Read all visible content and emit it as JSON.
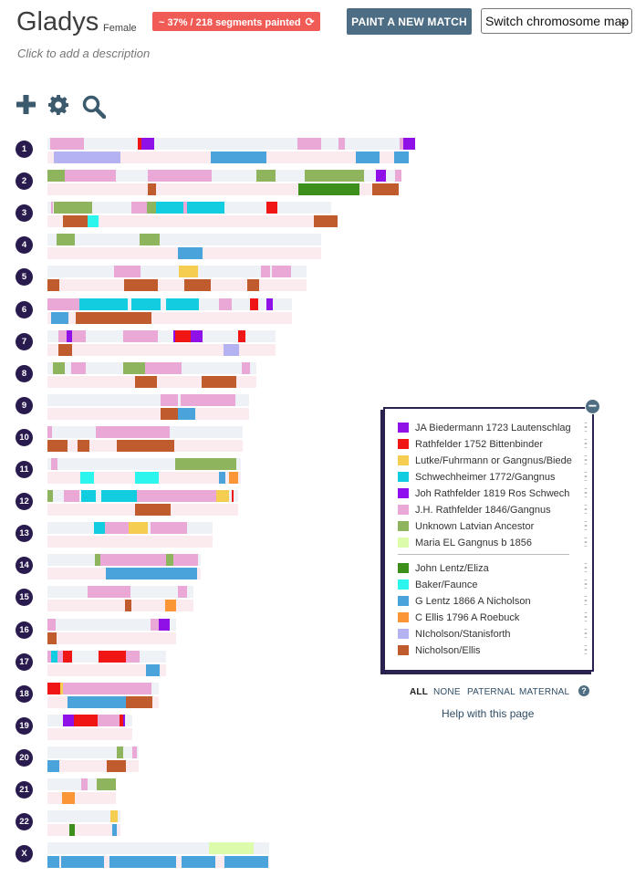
{
  "profile": {
    "name": "Gladys",
    "sex": "Female",
    "stats": "~ 37% / 218 segments painted",
    "description_placeholder": "Click to add a description"
  },
  "toolbar": {
    "paint_button": "PAINT A NEW MATCH",
    "map_select": "Switch chromosome map",
    "tools": [
      "plus-icon",
      "gear-icon",
      "search-icon"
    ]
  },
  "colors": {
    "JAB": "#9010e8",
    "RAT": "#f01616",
    "LUT": "#f5cd50",
    "SCH": "#12cde0",
    "JOH": "#8e0ef0",
    "JHR": "#eaa8d6",
    "UNK": "#8eb55d",
    "MAR": "#dcfbab",
    "LEN": "#3c8f1b",
    "BAK": "#2cf5ee",
    "GLE": "#4ba3dc",
    "CEL": "#fb9636",
    "NIS": "#b4b2f0",
    "NEL": "#bf5b2c"
  },
  "legend": {
    "items": [
      {
        "key": "JAB",
        "label": "JA Biedermann 1723 Lautenschlag"
      },
      {
        "key": "RAT",
        "label": "Rathfelder 1752 Bittenbinder"
      },
      {
        "key": "LUT",
        "label": "Lutke/Fuhrmann or Gangnus/Biede"
      },
      {
        "key": "SCH",
        "label": "Schwechheimer 1772/Gangnus"
      },
      {
        "key": "JOH",
        "label": "Joh Rathfelder 1819 Ros Schwech"
      },
      {
        "key": "JHR",
        "label": "J.H. Rathfelder 1846/Gangnus"
      },
      {
        "key": "UNK",
        "label": "Unknown Latvian Ancestor"
      },
      {
        "key": "MAR",
        "label": "Maria EL Gangnus b 1856"
      },
      {
        "key": "LEN",
        "label": "John Lentz/Eliza"
      },
      {
        "key": "BAK",
        "label": "Baker/Faunce"
      },
      {
        "key": "GLE",
        "label": "G Lentz 1866 A Nicholson"
      },
      {
        "key": "CEL",
        "label": "C Ellis 1796 A Roebuck"
      },
      {
        "key": "NIS",
        "label": "NIcholson/Stanisforth"
      },
      {
        "key": "NEL",
        "label": "Nicholson/Ellis"
      }
    ]
  },
  "filters": {
    "all": "ALL",
    "none": "NONE",
    "paternal": "PATERNAL",
    "maternal": "MATERNAL"
  },
  "help": {
    "icon": "help-icon",
    "link": "Help with this page"
  },
  "chromosomes": [
    {
      "label": "1",
      "length_mb": 249,
      "paternal": [
        [
          3,
          40,
          "JHR"
        ],
        [
          99,
          103,
          "RAT"
        ],
        [
          103,
          117,
          "JAB"
        ],
        [
          274,
          300,
          "JHR"
        ],
        [
          319,
          326,
          "JHR"
        ],
        [
          386,
          390,
          "JHR"
        ],
        [
          390,
          403,
          "JAB"
        ]
      ],
      "maternal": [
        [
          7,
          80,
          "NIS"
        ],
        [
          179,
          240,
          "GLE"
        ],
        [
          338,
          364,
          "GLE"
        ],
        [
          380,
          396,
          "GLE"
        ]
      ]
    },
    {
      "label": "2",
      "length_mb": 243,
      "paternal": [
        [
          0,
          19,
          "UNK"
        ],
        [
          19,
          75,
          "JHR"
        ],
        [
          110,
          180,
          "JHR"
        ],
        [
          229,
          250,
          "UNK"
        ],
        [
          282,
          337,
          "UNK"
        ],
        [
          337,
          347,
          "UNK"
        ],
        [
          360,
          371,
          "JAB"
        ],
        [
          381,
          388,
          "JHR"
        ]
      ],
      "maternal": [
        [
          110,
          119,
          "NEL"
        ],
        [
          275,
          342,
          "LEN"
        ],
        [
          356,
          385,
          "NEL"
        ]
      ]
    },
    {
      "label": "3",
      "length_mb": 198,
      "paternal": [
        [
          4,
          6,
          "JHR"
        ],
        [
          7,
          49,
          "UNK"
        ],
        [
          92,
          109,
          "JHR"
        ],
        [
          109,
          113,
          "UNK"
        ],
        [
          113,
          119,
          "UNK"
        ],
        [
          119,
          149,
          "SCH"
        ],
        [
          149,
          153,
          "JHR"
        ],
        [
          153,
          194,
          "SCH"
        ],
        [
          240,
          252,
          "RAT"
        ]
      ],
      "maternal": [
        [
          17,
          44,
          "NEL"
        ],
        [
          44,
          56,
          "BAK"
        ],
        [
          292,
          318,
          "NEL"
        ]
      ]
    },
    {
      "label": "4",
      "length_mb": 191,
      "paternal": [
        [
          10,
          30,
          "UNK"
        ],
        [
          101,
          123,
          "UNK"
        ]
      ],
      "maternal": [
        [
          143,
          170,
          "GLE"
        ]
      ]
    },
    {
      "label": "5",
      "length_mb": 181,
      "paternal": [
        [
          73,
          102,
          "JHR"
        ],
        [
          144,
          165,
          "LUT"
        ],
        [
          234,
          244,
          "JHR"
        ],
        [
          246,
          267,
          "JHR"
        ]
      ],
      "maternal": [
        [
          0,
          13,
          "NEL"
        ],
        [
          84,
          121,
          "NEL"
        ],
        [
          150,
          179,
          "NEL"
        ],
        [
          219,
          232,
          "NEL"
        ]
      ]
    },
    {
      "label": "6",
      "length_mb": 171,
      "paternal": [
        [
          0,
          35,
          "JHR"
        ],
        [
          35,
          88,
          "SCH"
        ],
        [
          92,
          124,
          "SCH"
        ],
        [
          130,
          166,
          "SCH"
        ],
        [
          188,
          202,
          "JHR"
        ],
        [
          222,
          231,
          "RAT"
        ],
        [
          240,
          247,
          "JAB"
        ]
      ],
      "maternal": [
        [
          4,
          23,
          "GLE"
        ],
        [
          31,
          66,
          "NEL"
        ],
        [
          66,
          114,
          "NEL"
        ]
      ]
    },
    {
      "label": "7",
      "length_mb": 159,
      "paternal": [
        [
          12,
          21,
          "JHR"
        ],
        [
          21,
          27,
          "JAB"
        ],
        [
          27,
          42,
          "JHR"
        ],
        [
          83,
          121,
          "JHR"
        ],
        [
          138,
          140,
          "JOH"
        ],
        [
          140,
          157,
          "RAT"
        ],
        [
          157,
          170,
          "JAB"
        ],
        [
          209,
          217,
          "RAT"
        ]
      ],
      "maternal": [
        [
          12,
          27,
          "NEL"
        ],
        [
          193,
          210,
          "NIS"
        ]
      ]
    },
    {
      "label": "8",
      "length_mb": 146,
      "paternal": [
        [
          6,
          19,
          "UNK"
        ],
        [
          26,
          42,
          "JHR"
        ],
        [
          83,
          107,
          "UNK"
        ],
        [
          107,
          147,
          "JHR"
        ],
        [
          213,
          222,
          "JHR"
        ]
      ],
      "maternal": [
        [
          96,
          120,
          "NEL"
        ],
        [
          169,
          193,
          "NEL"
        ],
        [
          193,
          207,
          "NEL"
        ]
      ]
    },
    {
      "label": "9",
      "length_mb": 141,
      "paternal": [
        [
          124,
          143,
          "JHR"
        ],
        [
          146,
          175,
          "JHR"
        ],
        [
          175,
          206,
          "JHR"
        ]
      ],
      "maternal": [
        [
          124,
          143,
          "NEL"
        ],
        [
          143,
          162,
          "GLE"
        ]
      ]
    },
    {
      "label": "10",
      "length_mb": 136,
      "paternal": [
        [
          0,
          5,
          "JHR"
        ],
        [
          53,
          134,
          "JHR"
        ]
      ],
      "maternal": [
        [
          0,
          22,
          "NEL"
        ],
        [
          33,
          46,
          "NEL"
        ],
        [
          76,
          139,
          "NEL"
        ]
      ]
    },
    {
      "label": "11",
      "length_mb": 135,
      "paternal": [
        [
          4,
          11,
          "JHR"
        ],
        [
          140,
          150,
          "UNK"
        ],
        [
          150,
          207,
          "UNK"
        ]
      ],
      "maternal": [
        [
          36,
          51,
          "BAK"
        ],
        [
          96,
          122,
          "BAK"
        ],
        [
          188,
          195,
          "GLE"
        ],
        [
          199,
          209,
          "CEL"
        ]
      ]
    },
    {
      "label": "12",
      "length_mb": 133,
      "paternal": [
        [
          0,
          6,
          "UNK"
        ],
        [
          18,
          35,
          "JHR"
        ],
        [
          37,
          53,
          "SCH"
        ],
        [
          59,
          98,
          "SCH"
        ],
        [
          98,
          185,
          "JHR"
        ],
        [
          185,
          199,
          "LUT"
        ],
        [
          202,
          204,
          "RAT"
        ]
      ],
      "maternal": [
        [
          96,
          135,
          "NEL"
        ]
      ]
    },
    {
      "label": "13",
      "length_mb": 115,
      "paternal": [
        [
          51,
          63,
          "SCH"
        ],
        [
          63,
          89,
          "JHR"
        ],
        [
          89,
          110,
          "LUT"
        ],
        [
          113,
          153,
          "JHR"
        ]
      ],
      "maternal": []
    },
    {
      "label": "14",
      "length_mb": 107,
      "paternal": [
        [
          52,
          58,
          "UNK"
        ],
        [
          58,
          130,
          "JHR"
        ],
        [
          130,
          138,
          "UNK"
        ],
        [
          138,
          165,
          "JHR"
        ]
      ],
      "maternal": [
        [
          64,
          164,
          "GLE"
        ]
      ]
    },
    {
      "label": "15",
      "length_mb": 102,
      "paternal": [
        [
          44,
          91,
          "JHR"
        ],
        [
          143,
          153,
          "JHR"
        ]
      ],
      "maternal": [
        [
          85,
          92,
          "NEL"
        ],
        [
          129,
          141,
          "CEL"
        ]
      ]
    },
    {
      "label": "16",
      "length_mb": 90,
      "paternal": [
        [
          0,
          9,
          "JHR"
        ],
        [
          113,
          122,
          "JHR"
        ],
        [
          122,
          134,
          "JAB"
        ]
      ],
      "maternal": [
        [
          0,
          10,
          "NEL"
        ]
      ]
    },
    {
      "label": "17",
      "length_mb": 83,
      "paternal": [
        [
          0,
          4,
          "JHR"
        ],
        [
          4,
          11,
          "SCH"
        ],
        [
          11,
          17,
          "JHR"
        ],
        [
          17,
          27,
          "RAT"
        ],
        [
          56,
          68,
          "RAT"
        ],
        [
          68,
          86,
          "RAT"
        ],
        [
          86,
          101,
          "JHR"
        ]
      ],
      "maternal": [
        [
          108,
          123,
          "GLE"
        ]
      ]
    },
    {
      "label": "18",
      "length_mb": 78,
      "paternal": [
        [
          0,
          14,
          "RAT"
        ],
        [
          14,
          17,
          "LUT"
        ],
        [
          17,
          114,
          "JHR"
        ]
      ],
      "maternal": [
        [
          22,
          58,
          "GLE"
        ],
        [
          58,
          86,
          "GLE"
        ],
        [
          86,
          115,
          "NEL"
        ]
      ]
    },
    {
      "label": "19",
      "length_mb": 59,
      "paternal": [
        [
          17,
          29,
          "JAB"
        ],
        [
          29,
          55,
          "RAT"
        ],
        [
          55,
          79,
          "JHR"
        ],
        [
          79,
          83,
          "RAT"
        ],
        [
          83,
          85,
          "JAB"
        ]
      ],
      "maternal": []
    },
    {
      "label": "20",
      "length_mb": 64,
      "paternal": [
        [
          76,
          83,
          "UNK"
        ],
        [
          93,
          98,
          "JHR"
        ]
      ],
      "maternal": [
        [
          0,
          13,
          "GLE"
        ],
        [
          65,
          86,
          "NEL"
        ]
      ]
    },
    {
      "label": "21",
      "length_mb": 48,
      "paternal": [
        [
          37,
          44,
          "JHR"
        ],
        [
          54,
          75,
          "UNK"
        ]
      ],
      "maternal": [
        [
          16,
          30,
          "CEL"
        ]
      ]
    },
    {
      "label": "22",
      "length_mb": 51,
      "paternal": [
        [
          69,
          77,
          "LUT"
        ]
      ],
      "maternal": [
        [
          24,
          30,
          "LEN"
        ],
        [
          71,
          76,
          "GLE"
        ]
      ]
    },
    {
      "label": "X",
      "length_mb": 155,
      "paternal": [
        [
          177,
          226,
          "MAR"
        ]
      ],
      "maternal": [
        [
          0,
          13,
          "GLE"
        ],
        [
          15,
          62,
          "GLE"
        ],
        [
          68,
          141,
          "GLE"
        ],
        [
          147,
          184,
          "GLE"
        ],
        [
          194,
          220,
          "GLE"
        ],
        [
          220,
          242,
          "GLE"
        ]
      ]
    }
  ]
}
